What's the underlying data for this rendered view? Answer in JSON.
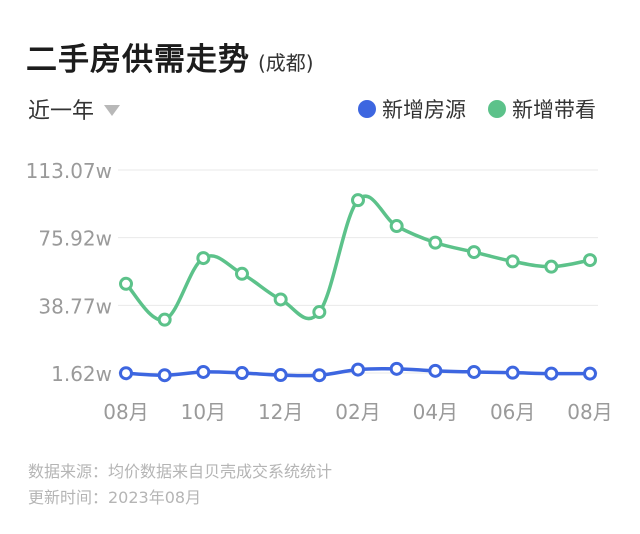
{
  "header": {
    "title": "二手房供需走势",
    "subtitle": "(成都)"
  },
  "filter": {
    "label": "近一年"
  },
  "footer": {
    "source": "数据来源：均价数据来自贝壳成交系统统计",
    "updated": "更新时间：2023年08月"
  },
  "colors": {
    "supply": "#3D66E0",
    "demand": "#5CC28A",
    "grid": "#e9e9e9",
    "axis_text": "#9a9a9a"
  },
  "chart_data": {
    "type": "line",
    "x": [
      "2022-08",
      "2022-09",
      "2022-10",
      "2022-11",
      "2022-12",
      "2023-01",
      "2023-02",
      "2023-03",
      "2023-04",
      "2023-05",
      "2023-06",
      "2023-07",
      "2023-08"
    ],
    "x_tick_labels": [
      "08月",
      "",
      "10月",
      "",
      "12月",
      "",
      "02月",
      "",
      "04月",
      "",
      "06月",
      "",
      "08月"
    ],
    "y_tick_labels": [
      "1.62w",
      "38.77w",
      "75.92w",
      "113.07w"
    ],
    "y_ticks": [
      1.62,
      38.77,
      75.92,
      113.07
    ],
    "ylim": [
      1.62,
      113.07
    ],
    "grid": true,
    "legend_position": "top-right",
    "series": [
      {
        "name": "新增房源",
        "color": "#3D66E0",
        "values": [
          1.5,
          0.4,
          2.2,
          1.6,
          0.5,
          0.4,
          3.5,
          3.9,
          2.8,
          2.2,
          1.8,
          1.3,
          1.3
        ]
      },
      {
        "name": "新增带看",
        "color": "#5CC28A",
        "values": [
          50.6,
          30.9,
          64.7,
          56.1,
          42.0,
          35.1,
          96.5,
          82.3,
          73.2,
          68.0,
          62.9,
          60.0,
          63.6
        ]
      }
    ]
  }
}
